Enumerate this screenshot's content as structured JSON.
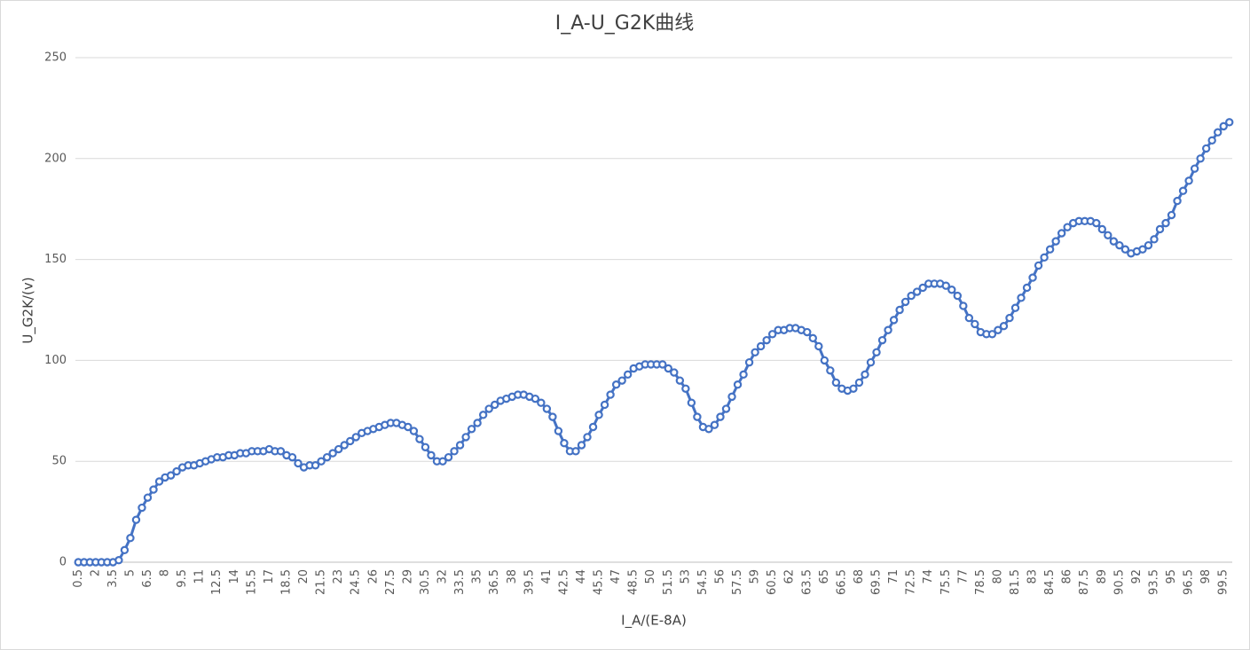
{
  "chart_data": {
    "type": "line",
    "title": "I_A-U_G2K曲线",
    "x_label": "I_A/(E-8A)",
    "y_label": "U_G2K/(v)",
    "categories": [
      "0.5",
      null,
      null,
      "2",
      null,
      null,
      "3.5",
      null,
      null,
      "5",
      null,
      null,
      "6.5",
      null,
      null,
      "8",
      null,
      null,
      "9.5",
      null,
      null,
      "11",
      null,
      null,
      "12.5",
      null,
      null,
      "14",
      null,
      null,
      "15.5",
      null,
      null,
      "17",
      null,
      null,
      "18.5",
      null,
      null,
      "20",
      null,
      null,
      "21.5",
      null,
      null,
      "23",
      null,
      null,
      "24.5",
      null,
      null,
      "26",
      null,
      null,
      "27.5",
      null,
      null,
      "29",
      null,
      null,
      "30.5",
      null,
      null,
      "32",
      null,
      null,
      "33.5",
      null,
      null,
      "35",
      null,
      null,
      "36.5",
      null,
      null,
      "38",
      null,
      null,
      "39.5",
      null,
      null,
      "41",
      null,
      null,
      "42.5",
      null,
      null,
      "44",
      null,
      null,
      "45.5",
      null,
      null,
      "47",
      null,
      null,
      "48.5",
      null,
      null,
      "50",
      null,
      null,
      "51.5",
      null,
      null,
      "53",
      null,
      null,
      "54.5",
      null,
      null,
      "56",
      null,
      null,
      "57.5",
      null,
      null,
      "59",
      null,
      null,
      "60.5",
      null,
      null,
      "62",
      null,
      null,
      "63.5",
      null,
      null,
      "65",
      null,
      null,
      "66.5",
      null,
      null,
      "68",
      null,
      null,
      "69.5",
      null,
      null,
      "71",
      null,
      null,
      "72.5",
      null,
      null,
      "74",
      null,
      null,
      "75.5",
      null,
      null,
      "77",
      null,
      null,
      "78.5",
      null,
      null,
      "80",
      null,
      null,
      "81.5",
      null,
      null,
      "83",
      null,
      null,
      "84.5",
      null,
      null,
      "86",
      null,
      null,
      "87.5",
      null,
      null,
      "89",
      null,
      null,
      "90.5",
      null,
      null,
      "92",
      null,
      null,
      "93.5",
      null,
      null,
      "95",
      null,
      null,
      "96.5",
      null,
      null,
      "98",
      null,
      null,
      "99.5",
      null
    ],
    "values": [
      0,
      0,
      0,
      0,
      0,
      0,
      0,
      1,
      6,
      12,
      21,
      27,
      32,
      36,
      40,
      42,
      43,
      45,
      47,
      48,
      48,
      49,
      50,
      51,
      52,
      52,
      53,
      53,
      54,
      54,
      55,
      55,
      55,
      56,
      55,
      55,
      53,
      52,
      49,
      47,
      48,
      48,
      50,
      52,
      54,
      56,
      58,
      60,
      62,
      64,
      65,
      66,
      67,
      68,
      69,
      69,
      68,
      67,
      65,
      61,
      57,
      53,
      50,
      50,
      52,
      55,
      58,
      62,
      66,
      69,
      73,
      76,
      78,
      80,
      81,
      82,
      83,
      83,
      82,
      81,
      79,
      76,
      72,
      65,
      59,
      55,
      55,
      58,
      62,
      67,
      73,
      78,
      83,
      88,
      90,
      93,
      96,
      97,
      98,
      98,
      98,
      98,
      96,
      94,
      90,
      86,
      79,
      72,
      67,
      66,
      68,
      72,
      76,
      82,
      88,
      93,
      99,
      104,
      107,
      110,
      113,
      115,
      115,
      116,
      116,
      115,
      114,
      111,
      107,
      100,
      95,
      89,
      86,
      85,
      86,
      89,
      93,
      99,
      104,
      110,
      115,
      120,
      125,
      129,
      132,
      134,
      136,
      138,
      138,
      138,
      137,
      135,
      132,
      127,
      121,
      118,
      114,
      113,
      113,
      115,
      117,
      121,
      126,
      131,
      136,
      141,
      147,
      151,
      155,
      159,
      163,
      166,
      168,
      169,
      169,
      169,
      168,
      165,
      162,
      159,
      157,
      155,
      153,
      154,
      155,
      157,
      160,
      165,
      168,
      172,
      179,
      184,
      189,
      195,
      200,
      205,
      209,
      213,
      216,
      218
    ],
    "color": "#4472c4",
    "markers": true,
    "ylim": [
      0,
      250
    ],
    "yticks": [
      0,
      50,
      100,
      150,
      200,
      250
    ],
    "grid": true
  }
}
